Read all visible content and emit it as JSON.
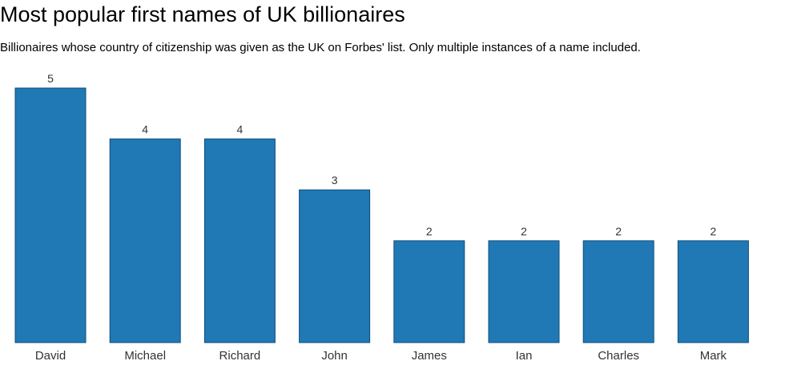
{
  "chart_data": {
    "type": "bar",
    "title": "Most popular first names of UK billionaires",
    "subtitle": "Billionaires whose country of citizenship was given as the UK on Forbes' list. Only multiple instances of a name included.",
    "categories": [
      "David",
      "Michael",
      "Richard",
      "John",
      "James",
      "Ian",
      "Charles",
      "Mark"
    ],
    "values": [
      5,
      4,
      4,
      3,
      2,
      2,
      2,
      2
    ],
    "ylim": [
      0,
      5
    ],
    "grid": false,
    "data_labels": true,
    "bar_color": "#2078b4",
    "bar_edge_color": "#0d4f7f"
  }
}
